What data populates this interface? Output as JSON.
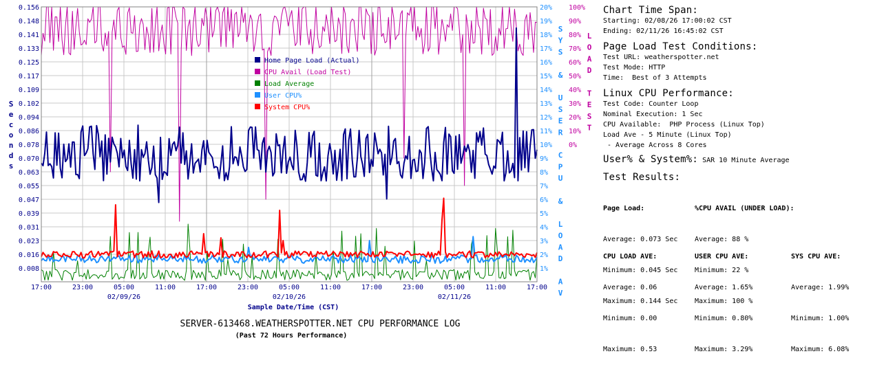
{
  "chart_data": {
    "type": "line",
    "title": "SERVER-613468.WEATHERSPOTTER.NET CPU PERFORMANCE LOG",
    "subtitle": "(Past 72 Hours Performance)",
    "xlabel": "Sample Date/Time (CST)",
    "ylabel_left": "Seconds",
    "ylabel_right_inner": "SYS & USER CPU & LOAD AV",
    "ylabel_right_outer": "LOAD TEST",
    "x_tick_labels": [
      "17:00",
      "23:00",
      "05:00",
      "11:00",
      "17:00",
      "23:00",
      "05:00",
      "11:00",
      "17:00",
      "23:00",
      "05:00",
      "11:00",
      "17:00"
    ],
    "x_date_labels": [
      "02/09/26",
      "02/10/26",
      "02/11/26"
    ],
    "y_left_ticks": [
      "0.156",
      "0.148",
      "0.141",
      "0.133",
      "0.125",
      "0.117",
      "0.109",
      "0.102",
      "0.094",
      "0.086",
      "0.078",
      "0.070",
      "0.063",
      "0.055",
      "0.047",
      "0.039",
      "0.031",
      "0.023",
      "0.016",
      "0.008"
    ],
    "y_left_range": [
      0,
      0.156
    ],
    "y_right_inner_ticks": [
      "20%",
      "19%",
      "18%",
      "17%",
      "16%",
      "15%",
      "14%",
      "13%",
      "12%",
      "11%",
      "10%",
      "9%",
      "8%",
      "7%",
      "6%",
      "5%",
      "4%",
      "3%",
      "2%",
      "1%"
    ],
    "y_right_inner_range": [
      0,
      20
    ],
    "y_right_outer_ticks": [
      "100%",
      "90%",
      "80%",
      "70%",
      "60%",
      "50%",
      "40%",
      "30%",
      "20%",
      "10%",
      "0%"
    ],
    "y_right_outer_range": [
      0,
      100
    ],
    "grid": true,
    "legend_position": "upper-middle",
    "series": [
      {
        "name": "Home Page Load (Actual)",
        "color": "#00008b",
        "axis": "left",
        "stats": {
          "average": 0.073,
          "minimum": 0.045,
          "maximum": 0.144
        }
      },
      {
        "name": "CPU Avail (Load Test)",
        "color": "#c000a0",
        "axis": "right_outer",
        "stats": {
          "average": 88,
          "minimum": 22,
          "maximum": 100
        }
      },
      {
        "name": "Load Average",
        "color": "#008000",
        "axis": "right_inner",
        "stats": {
          "average": 0.06,
          "minimum": 0.0,
          "maximum": 0.53
        }
      },
      {
        "name": "User CPU%",
        "color": "#1e90ff",
        "axis": "right_inner",
        "stats": {
          "average": 1.65,
          "minimum": 0.8,
          "maximum": 3.29
        }
      },
      {
        "name": "System CPU%",
        "color": "#ff0000",
        "axis": "right_inner",
        "stats": {
          "average": 1.99,
          "minimum": 1.0,
          "maximum": 6.08
        }
      }
    ]
  },
  "panel": {
    "span_title": "Chart Time Span:",
    "starting": "Starting: 02/08/26 17:00:02 CST",
    "ending": "Ending: 02/11/26 16:45:02 CST",
    "conditions_title": "Page Load Test Conditions:",
    "test_url": "Test URL: weatherspotter.net",
    "test_mode": "Test Mode: HTTP",
    "time": "Time:  Best of 3 Attempts",
    "linux_title": "Linux CPU Performance:",
    "test_code": "Test Code: Counter Loop",
    "nominal": "Nominal Execution: 1 Sec",
    "cpu_available": "CPU Available:  PHP Process (Linux Top)",
    "load_ave": "Load Ave - 5 Minute (Linux Top)",
    "average_across": " - Average Across 8 Cores",
    "usersys_title": "User% & System%:",
    "usersys_note": "SAR 10 Minute Average",
    "results_title": "Test Results:",
    "page_load_head": "Page Load:",
    "page_load_avg": "Average: 0.073 Sec",
    "page_load_min": "Minimum: 0.045 Sec",
    "page_load_max": "Maximum: 0.144 Sec",
    "cpu_avail_head": "%CPU AVAIL (UNDER LOAD):",
    "cpu_avail_avg": "Average: 88 %",
    "cpu_avail_min": "Minimum: 22 %",
    "cpu_avail_max": "Maximum: 100 %",
    "load_head": "CPU LOAD AVE:",
    "load_avg": "Average: 0.06",
    "load_min": "Minimum: 0.00",
    "load_max": "Maximum: 0.53",
    "user_head": "USER CPU AVE:",
    "user_avg": "Average: 1.65%",
    "user_min": "Minimum: 0.80%",
    "user_max": "Maximum: 3.29%",
    "sys_head": "SYS CPU AVE:",
    "sys_avg": "Average: 1.99%",
    "sys_min": "Minimum: 1.00%",
    "sys_max": "Maximum: 6.08%"
  }
}
